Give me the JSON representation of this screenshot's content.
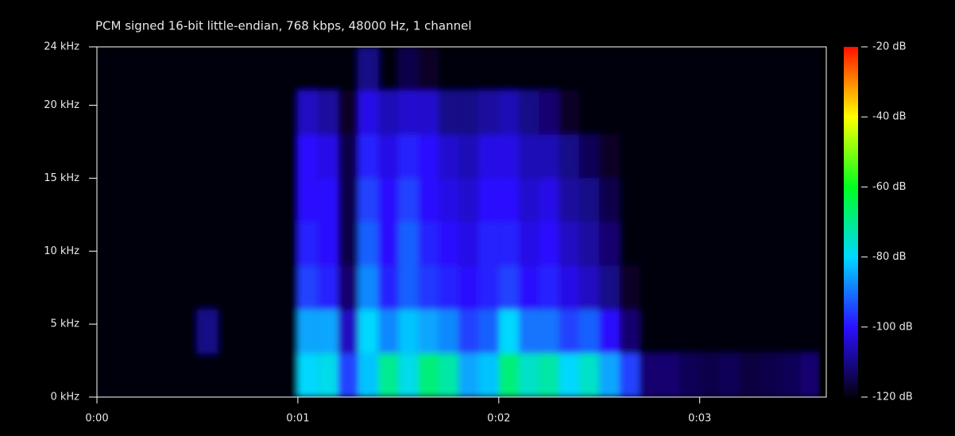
{
  "chart_data": {
    "type": "spectrogram",
    "title": "PCM signed 16-bit little-endian, 768 kbps, 48000 Hz, 1 channel",
    "xlim": [
      0,
      0.0363
    ],
    "xticks": [
      {
        "value": 0,
        "label": "0:00"
      },
      {
        "value": 0.01,
        "label": "0:01"
      },
      {
        "value": 0.02,
        "label": "0:02"
      },
      {
        "value": 0.03,
        "label": "0:03"
      }
    ],
    "ylim": [
      0,
      24
    ],
    "yticks": [
      {
        "value": 0,
        "label": "0 kHz"
      },
      {
        "value": 5,
        "label": "5 kHz"
      },
      {
        "value": 10,
        "label": "10 kHz"
      },
      {
        "value": 15,
        "label": "15 kHz"
      },
      {
        "value": 20,
        "label": "20 kHz"
      },
      {
        "value": 24,
        "label": "24 kHz"
      }
    ],
    "colorbar": {
      "lim": [
        -120,
        -20
      ],
      "ticks": [
        {
          "value": -20,
          "label": "-20 dB"
        },
        {
          "value": -40,
          "label": "-40 dB"
        },
        {
          "value": -60,
          "label": "-60 dB"
        },
        {
          "value": -80,
          "label": "-80 dB"
        },
        {
          "value": -100,
          "label": "-100 dB"
        },
        {
          "value": -120,
          "label": "-120 dB"
        }
      ],
      "colors": [
        "#05000f",
        "#2a10ff",
        "#00d8ff",
        "#00ff20",
        "#ffff00",
        "#ff1000"
      ]
    },
    "t_bins": [
      0,
      0.001,
      0.002,
      0.003,
      0.004,
      0.005,
      0.006,
      0.007,
      0.008,
      0.009,
      0.01,
      0.011,
      0.012,
      0.013,
      0.014,
      0.015,
      0.016,
      0.017,
      0.018,
      0.019,
      0.02,
      0.021,
      0.022,
      0.023,
      0.024,
      0.025,
      0.026,
      0.027,
      0.028,
      0.029,
      0.03,
      0.031,
      0.032,
      0.033,
      0.034,
      0.035,
      0.036
    ],
    "f_bins": [
      0,
      3,
      6,
      9,
      12,
      15,
      18,
      21,
      24
    ],
    "values": [
      [
        -120,
        -120,
        -120,
        -120,
        -120,
        -120,
        -120,
        -120,
        -120,
        -120,
        -80,
        -78,
        -95,
        -82,
        -70,
        -78,
        -68,
        -72,
        -85,
        -82,
        -68,
        -75,
        -72,
        -80,
        -75,
        -85,
        -95,
        -112,
        -112,
        -114,
        -115,
        -114,
        -116,
        -115,
        -114,
        -112
      ],
      [
        -120,
        -120,
        -120,
        -120,
        -120,
        -110,
        -120,
        -120,
        -120,
        -120,
        -85,
        -85,
        -105,
        -80,
        -88,
        -82,
        -85,
        -88,
        -95,
        -92,
        -80,
        -90,
        -90,
        -95,
        -92,
        -100,
        -112,
        -120,
        -120,
        -120,
        -120,
        -120,
        -120,
        -120,
        -120,
        -120
      ],
      [
        -120,
        -120,
        -120,
        -120,
        -120,
        -120,
        -120,
        -120,
        -120,
        -120,
        -95,
        -98,
        -112,
        -88,
        -98,
        -92,
        -96,
        -98,
        -100,
        -98,
        -95,
        -100,
        -98,
        -102,
        -105,
        -110,
        -118,
        -120,
        -120,
        -120,
        -120,
        -120,
        -120,
        -120,
        -120,
        -120
      ],
      [
        -120,
        -120,
        -120,
        -120,
        -120,
        -120,
        -120,
        -120,
        -120,
        -120,
        -98,
        -100,
        -115,
        -92,
        -100,
        -92,
        -98,
        -100,
        -102,
        -98,
        -98,
        -102,
        -100,
        -105,
        -108,
        -112,
        -120,
        -120,
        -120,
        -120,
        -120,
        -120,
        -120,
        -120,
        -120,
        -120
      ],
      [
        -120,
        -120,
        -120,
        -120,
        -120,
        -120,
        -120,
        -120,
        -120,
        -120,
        -100,
        -100,
        -115,
        -95,
        -100,
        -95,
        -100,
        -102,
        -104,
        -100,
        -100,
        -104,
        -102,
        -108,
        -110,
        -115,
        -120,
        -120,
        -120,
        -120,
        -120,
        -120,
        -120,
        -120,
        -120,
        -120
      ],
      [
        -120,
        -120,
        -120,
        -120,
        -120,
        -120,
        -120,
        -120,
        -120,
        -120,
        -100,
        -102,
        -115,
        -98,
        -102,
        -98,
        -100,
        -104,
        -106,
        -102,
        -102,
        -106,
        -106,
        -110,
        -114,
        -118,
        -120,
        -120,
        -120,
        -120,
        -120,
        -120,
        -120,
        -120,
        -120,
        -120
      ],
      [
        -120,
        -120,
        -120,
        -120,
        -120,
        -120,
        -120,
        -120,
        -120,
        -120,
        -105,
        -108,
        -118,
        -102,
        -106,
        -104,
        -104,
        -110,
        -110,
        -108,
        -106,
        -110,
        -112,
        -118,
        -120,
        -120,
        -120,
        -120,
        -120,
        -120,
        -120,
        -120,
        -120,
        -120,
        -120,
        -120
      ],
      [
        -120,
        -120,
        -120,
        -120,
        -120,
        -120,
        -120,
        -120,
        -120,
        -120,
        -120,
        -120,
        -120,
        -110,
        -120,
        -115,
        -118,
        -120,
        -120,
        -120,
        -120,
        -120,
        -120,
        -120,
        -120,
        -120,
        -120,
        -120,
        -120,
        -120,
        -120,
        -120,
        -120,
        -120,
        -120,
        -120
      ]
    ]
  }
}
